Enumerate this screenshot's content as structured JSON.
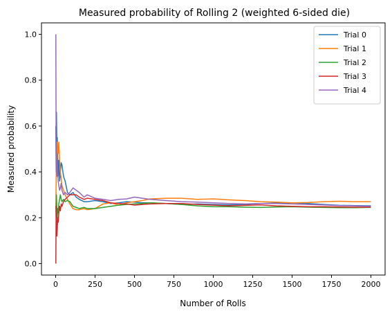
{
  "chart_data": {
    "type": "line",
    "title": "Measured probability of Rolling 2 (weighted 6-sided die)",
    "xlabel": "Number of Rolls",
    "ylabel": "Measured probability",
    "xlim": [
      -90,
      2090
    ],
    "ylim": [
      -0.05,
      1.05
    ],
    "xticks": [
      0,
      250,
      500,
      750,
      1000,
      1250,
      1500,
      1750,
      2000
    ],
    "yticks": [
      0.0,
      0.2,
      0.4,
      0.6,
      0.8,
      1.0
    ],
    "xtick_labels": [
      "0",
      "250",
      "500",
      "750",
      "1000",
      "1250",
      "1500",
      "1750",
      "2000"
    ],
    "ytick_labels": [
      "0.0",
      "0.2",
      "0.4",
      "0.6",
      "0.8",
      "1.0"
    ],
    "grid": false,
    "legend_position": "top-right",
    "series": [
      {
        "name": "Trial 0",
        "color": "#1f77b4",
        "x": [
          1,
          3,
          5,
          8,
          10,
          13,
          16,
          20,
          25,
          30,
          35,
          40,
          50,
          60,
          75,
          90,
          110,
          130,
          150,
          180,
          200,
          250,
          300,
          350,
          400,
          450,
          500,
          550,
          600,
          700,
          800,
          900,
          1000,
          1100,
          1200,
          1300,
          1400,
          1500,
          1600,
          1700,
          1800,
          1900,
          2000
        ],
        "y": [
          0.6,
          0.4,
          0.66,
          0.5,
          0.55,
          0.46,
          0.38,
          0.45,
          0.36,
          0.4,
          0.44,
          0.43,
          0.38,
          0.36,
          0.31,
          0.3,
          0.31,
          0.29,
          0.28,
          0.27,
          0.27,
          0.275,
          0.27,
          0.262,
          0.265,
          0.27,
          0.268,
          0.265,
          0.265,
          0.262,
          0.258,
          0.26,
          0.258,
          0.256,
          0.258,
          0.262,
          0.264,
          0.265,
          0.262,
          0.258,
          0.254,
          0.253,
          0.252
        ]
      },
      {
        "name": "Trial 1",
        "color": "#ff7f0e",
        "x": [
          1,
          3,
          5,
          8,
          10,
          13,
          16,
          20,
          25,
          30,
          35,
          40,
          50,
          60,
          75,
          90,
          110,
          130,
          150,
          180,
          200,
          250,
          300,
          350,
          400,
          450,
          500,
          550,
          600,
          700,
          800,
          900,
          1000,
          1100,
          1200,
          1300,
          1400,
          1500,
          1600,
          1700,
          1800,
          1900,
          2000
        ],
        "y": [
          0.25,
          0.35,
          0.5,
          0.44,
          0.53,
          0.5,
          0.48,
          0.53,
          0.45,
          0.4,
          0.37,
          0.34,
          0.32,
          0.3,
          0.28,
          0.26,
          0.24,
          0.235,
          0.235,
          0.24,
          0.235,
          0.24,
          0.26,
          0.265,
          0.255,
          0.265,
          0.27,
          0.275,
          0.282,
          0.285,
          0.285,
          0.28,
          0.282,
          0.278,
          0.275,
          0.27,
          0.268,
          0.265,
          0.266,
          0.27,
          0.272,
          0.27,
          0.27
        ]
      },
      {
        "name": "Trial 2",
        "color": "#2ca02c",
        "x": [
          1,
          3,
          5,
          8,
          10,
          13,
          16,
          20,
          25,
          30,
          35,
          40,
          50,
          60,
          75,
          90,
          110,
          130,
          150,
          180,
          200,
          250,
          300,
          350,
          400,
          450,
          500,
          550,
          600,
          700,
          800,
          900,
          1000,
          1100,
          1200,
          1300,
          1400,
          1500,
          1600,
          1700,
          1800,
          1900,
          2000
        ],
        "y": [
          0.25,
          0.2,
          0.3,
          0.22,
          0.2,
          0.24,
          0.22,
          0.26,
          0.28,
          0.3,
          0.28,
          0.27,
          0.28,
          0.27,
          0.275,
          0.27,
          0.25,
          0.245,
          0.24,
          0.245,
          0.24,
          0.24,
          0.245,
          0.25,
          0.255,
          0.258,
          0.26,
          0.262,
          0.265,
          0.262,
          0.258,
          0.252,
          0.248,
          0.248,
          0.246,
          0.245,
          0.247,
          0.248,
          0.246,
          0.245,
          0.244,
          0.244,
          0.245
        ]
      },
      {
        "name": "Trial 3",
        "color": "#d62728",
        "x": [
          1,
          3,
          5,
          8,
          10,
          13,
          16,
          20,
          25,
          30,
          35,
          40,
          50,
          60,
          75,
          90,
          110,
          130,
          150,
          180,
          200,
          250,
          300,
          350,
          400,
          450,
          500,
          550,
          600,
          700,
          800,
          900,
          1000,
          1100,
          1200,
          1300,
          1400,
          1500,
          1600,
          1700,
          1800,
          1900,
          2000
        ],
        "y": [
          0.0,
          0.25,
          0.2,
          0.12,
          0.15,
          0.2,
          0.18,
          0.22,
          0.25,
          0.23,
          0.26,
          0.25,
          0.27,
          0.28,
          0.29,
          0.3,
          0.3,
          0.3,
          0.29,
          0.28,
          0.285,
          0.28,
          0.275,
          0.265,
          0.262,
          0.26,
          0.255,
          0.258,
          0.26,
          0.262,
          0.262,
          0.258,
          0.255,
          0.252,
          0.254,
          0.256,
          0.252,
          0.25,
          0.248,
          0.248,
          0.247,
          0.246,
          0.246
        ]
      },
      {
        "name": "Trial 4",
        "color": "#9467bd",
        "x": [
          1,
          3,
          5,
          8,
          10,
          13,
          16,
          20,
          25,
          30,
          35,
          40,
          50,
          60,
          75,
          90,
          110,
          130,
          150,
          180,
          200,
          250,
          300,
          350,
          400,
          450,
          500,
          550,
          600,
          700,
          800,
          900,
          1000,
          1100,
          1200,
          1300,
          1400,
          1500,
          1600,
          1700,
          1800,
          1900,
          2000
        ],
        "y": [
          1.0,
          0.5,
          0.4,
          0.38,
          0.45,
          0.4,
          0.36,
          0.34,
          0.32,
          0.33,
          0.35,
          0.32,
          0.3,
          0.31,
          0.3,
          0.31,
          0.33,
          0.32,
          0.31,
          0.29,
          0.3,
          0.285,
          0.28,
          0.275,
          0.28,
          0.282,
          0.29,
          0.285,
          0.28,
          0.275,
          0.27,
          0.268,
          0.265,
          0.262,
          0.26,
          0.262,
          0.262,
          0.26,
          0.258,
          0.256,
          0.253,
          0.252,
          0.25
        ]
      }
    ]
  }
}
